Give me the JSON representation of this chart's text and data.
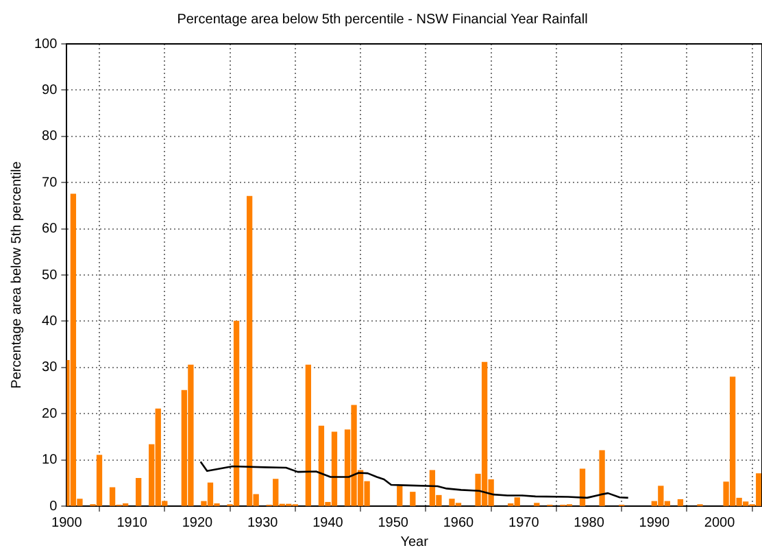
{
  "chart_data": {
    "type": "bar",
    "title": "Percentage area below 5th percentile - NSW Financial Year Rainfall",
    "xlabel": "Year",
    "ylabel": "Percentage area below 5th percentile",
    "xlim": [
      1900,
      2006.5
    ],
    "xticks": [
      1900,
      1910,
      1920,
      1930,
      1940,
      1950,
      1960,
      1970,
      1980,
      1990,
      2000
    ],
    "ylim": [
      0,
      100
    ],
    "yticks": [
      0,
      10,
      20,
      30,
      40,
      50,
      60,
      70,
      80,
      90,
      100
    ],
    "grid": true,
    "legend": false,
    "series": [
      {
        "color": "#ff8000",
        "x": [
          1900,
          1901,
          1902,
          1904,
          1905,
          1907,
          1908,
          1909,
          1911,
          1913,
          1914,
          1915,
          1918,
          1919,
          1921,
          1922,
          1923,
          1925,
          1926,
          1928,
          1929,
          1931,
          1932,
          1933,
          1934,
          1935,
          1937,
          1939,
          1940,
          1941,
          1943,
          1944,
          1945,
          1946,
          1951,
          1953,
          1956,
          1957,
          1959,
          1960,
          1963,
          1964,
          1965,
          1968,
          1969,
          1972,
          1974,
          1976,
          1977,
          1979,
          1982,
          1985,
          1990,
          1991,
          1992,
          1994,
          1997,
          2001,
          2002,
          2003,
          2004,
          2005,
          2006
        ],
        "values": [
          31.5,
          67.5,
          1.5,
          0.3,
          11,
          4,
          0.2,
          0.5,
          6,
          13.3,
          21,
          1,
          25,
          30.5,
          1,
          5,
          0.5,
          0.3,
          40,
          67,
          2.5,
          0.2,
          5.8,
          0.4,
          0.4,
          0.3,
          30.5,
          17.3,
          0.8,
          16,
          16.5,
          21.8,
          7.7,
          5.3,
          4.3,
          3,
          7.7,
          2.3,
          1.5,
          0.6,
          6.9,
          31.1,
          5.7,
          0.5,
          1.8,
          0.6,
          0.2,
          0.2,
          0.3,
          8,
          12,
          0.2,
          1,
          4.3,
          1,
          1.4,
          0.3,
          5.2,
          27.9,
          1.7,
          0.9,
          0.3,
          7
        ]
      },
      {
        "type": "line",
        "color": "#000000",
        "marker": "none",
        "x": [
          1920.5,
          1921.5,
          1925.4,
          1930.4,
          1933.6,
          1935.4,
          1938.2,
          1940.4,
          1943.2,
          1944.7,
          1946.1,
          1947.5,
          1948.6,
          1949.7,
          1951.8,
          1956.8,
          1958.2,
          1960.4,
          1963.2,
          1965.4,
          1967.5,
          1969.7,
          1971.8,
          1976.8,
          1979.7,
          1981.8,
          1982.9,
          1984.7,
          1986
        ],
        "values": [
          9.6,
          7.6,
          8.6,
          8.4,
          8.3,
          7.4,
          7.5,
          6.3,
          6.3,
          7.2,
          7.1,
          6.3,
          5.8,
          4.6,
          4.5,
          4.3,
          3.8,
          3.5,
          3.3,
          2.5,
          2.3,
          2.3,
          2.1,
          2.0,
          1.8,
          2.5,
          2.8,
          1.9,
          1.8
        ]
      }
    ]
  }
}
